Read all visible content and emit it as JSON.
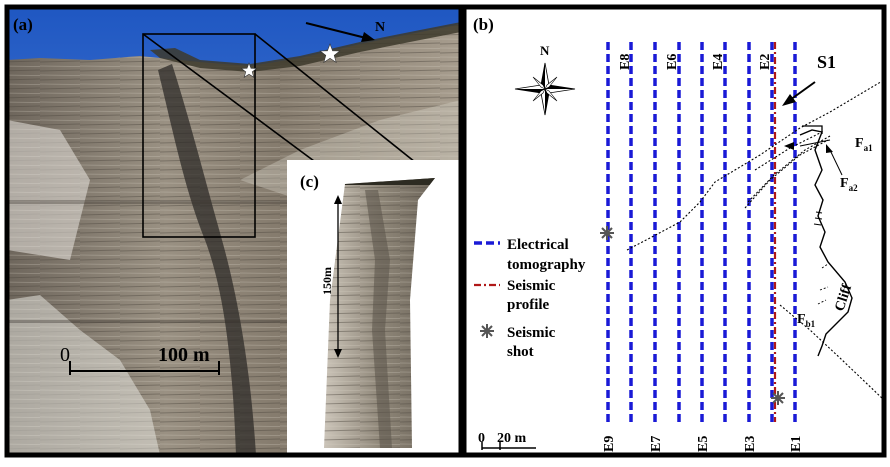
{
  "panel_a": {
    "label": "(a)",
    "north": "N",
    "scale_left": "0",
    "scale_right": "100 m"
  },
  "panel_c": {
    "label": "(c)",
    "height_label": "150m"
  },
  "panel_b": {
    "label": "(b)",
    "compass": "N",
    "profile_label": "S1",
    "fault_a1": "F",
    "fault_a1_sub": "a1",
    "fault_a2": "F",
    "fault_a2_sub": "a2",
    "fault_b1": "F",
    "fault_b1_sub": "b1",
    "cliff_label": "Cliff",
    "legend": {
      "electrical_1": "Electrical",
      "electrical_2": "tomography",
      "seismic_1": "Seismic",
      "seismic_2": "profile",
      "shot_1": "Seismic",
      "shot_2": "shot"
    },
    "scale_left": "0",
    "scale_right": "20 m",
    "lines_top": [
      "E8",
      "E6",
      "E4",
      "E2"
    ],
    "lines_bottom": [
      "E9",
      "E7",
      "E5",
      "E3",
      "E1"
    ]
  },
  "colors": {
    "electrical": "#1a1ad6",
    "seismic": "#b01818",
    "sky": "#2f6ad0",
    "rock": "#8c8378"
  }
}
